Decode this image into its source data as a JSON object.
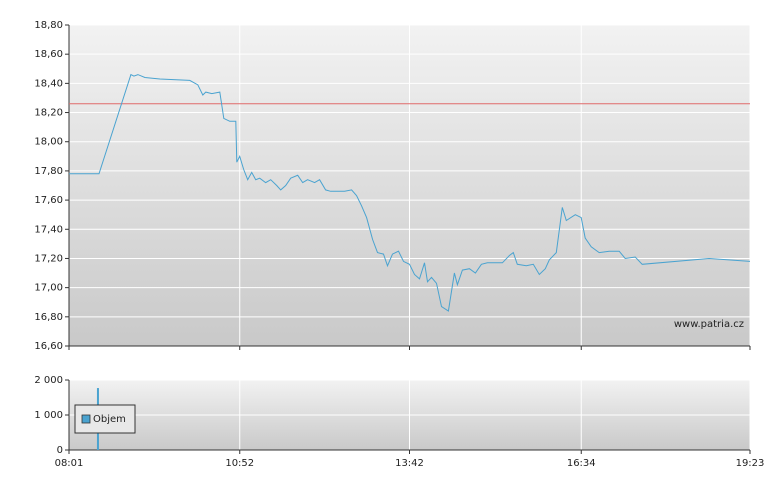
{
  "chart_data": [
    {
      "type": "line",
      "x": [
        "08:01",
        "08:31",
        "09:03",
        "09:06",
        "09:10",
        "09:17",
        "09:32",
        "10:02",
        "10:10",
        "10:15",
        "10:18",
        "10:24",
        "10:32",
        "10:36",
        "10:42",
        "10:48",
        "10:49",
        "10:52",
        "10:56",
        "11:00",
        "11:04",
        "11:08",
        "11:12",
        "11:18",
        "11:23",
        "11:29",
        "11:33",
        "11:38",
        "11:43",
        "11:50",
        "11:55",
        "12:00",
        "12:07",
        "12:12",
        "12:18",
        "12:23",
        "12:32",
        "12:37",
        "12:44",
        "12:49",
        "12:54",
        "12:59",
        "13:05",
        "13:10",
        "13:16",
        "13:20",
        "13:25",
        "13:31",
        "13:36",
        "13:42",
        "13:47",
        "13:52",
        "13:57",
        "14:00",
        "14:04",
        "14:09",
        "14:14",
        "14:21",
        "14:27",
        "14:30",
        "14:35",
        "14:42",
        "14:48",
        "14:54",
        "15:00",
        "15:08",
        "15:15",
        "15:22",
        "15:26",
        "15:30",
        "15:39",
        "15:46",
        "15:52",
        "15:58",
        "16:02",
        "16:09",
        "16:15",
        "16:19",
        "16:28",
        "16:34",
        "16:38",
        "16:44",
        "16:52",
        "17:02",
        "17:12",
        "17:18",
        "17:28",
        "17:35",
        "18:42",
        "19:23"
      ],
      "values": [
        17.78,
        17.78,
        18.46,
        18.45,
        18.46,
        18.44,
        18.43,
        18.42,
        18.39,
        18.32,
        18.34,
        18.33,
        18.34,
        18.16,
        18.14,
        18.14,
        17.86,
        17.9,
        17.81,
        17.74,
        17.79,
        17.74,
        17.75,
        17.72,
        17.74,
        17.7,
        17.67,
        17.7,
        17.75,
        17.77,
        17.72,
        17.74,
        17.72,
        17.74,
        17.67,
        17.66,
        17.66,
        17.66,
        17.67,
        17.63,
        17.56,
        17.48,
        17.33,
        17.24,
        17.23,
        17.15,
        17.23,
        17.25,
        17.18,
        17.16,
        17.09,
        17.06,
        17.17,
        17.04,
        17.07,
        17.03,
        16.87,
        16.84,
        17.1,
        17.02,
        17.12,
        17.13,
        17.1,
        17.16,
        17.17,
        17.17,
        17.17,
        17.22,
        17.24,
        17.16,
        17.15,
        17.16,
        17.09,
        17.13,
        17.19,
        17.24,
        17.55,
        17.46,
        17.5,
        17.48,
        17.34,
        17.28,
        17.24,
        17.25,
        17.25,
        17.2,
        17.21,
        17.16,
        17.2,
        17.18
      ],
      "color": "#4aa3d0",
      "reference_line": 18.26,
      "reference_color": "#e06a6a",
      "xlim": [
        "08:01",
        "19:23"
      ],
      "xticks": [
        "08:01",
        "10:52",
        "13:42",
        "16:34",
        "19:23"
      ],
      "ylim": [
        16.6,
        18.8
      ],
      "yticks": [
        {
          "value": 16.6,
          "label": "16,60"
        },
        {
          "value": 16.8,
          "label": "16,80"
        },
        {
          "value": 17.0,
          "label": "17,00"
        },
        {
          "value": 17.2,
          "label": "17,20"
        },
        {
          "value": 17.4,
          "label": "17,40"
        },
        {
          "value": 17.6,
          "label": "17,60"
        },
        {
          "value": 17.8,
          "label": "17,80"
        },
        {
          "value": 18.0,
          "label": "18,00"
        },
        {
          "value": 18.2,
          "label": "18,20"
        },
        {
          "value": 18.4,
          "label": "18,40"
        },
        {
          "value": 18.6,
          "label": "18,60"
        },
        {
          "value": 18.8,
          "label": "18,80"
        }
      ],
      "grid": true,
      "watermark": "www.patria.cz"
    },
    {
      "type": "bar",
      "x": [
        "08:30"
      ],
      "series": [
        {
          "name": "Objem",
          "color": "#4aa3d0",
          "values": [
            1770
          ]
        }
      ],
      "xlim": [
        "08:01",
        "19:23"
      ],
      "xticks": [
        "08:01",
        "10:52",
        "13:42",
        "16:34",
        "19:23"
      ],
      "ylim": [
        0,
        2000
      ],
      "yticks": [
        0,
        {
          "value": 1000,
          "label": "1 000"
        },
        {
          "value": 2000,
          "label": "2 000"
        }
      ],
      "grid": true,
      "legend": "bottom-left"
    }
  ]
}
